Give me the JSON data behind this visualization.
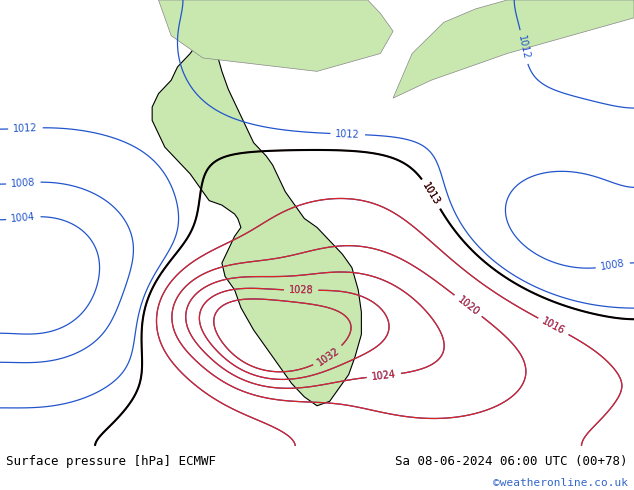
{
  "title_left": "Surface pressure [hPa] ECMWF",
  "title_right": "Sa 08-06-2024 06:00 UTC (00+78)",
  "watermark": "©weatheronline.co.uk",
  "bg_color": "#d0d8e0",
  "land_color": "#c8e8b0",
  "figsize": [
    6.34,
    4.9
  ],
  "dpi": 100,
  "bottom_bar_color": "#f0f0f0",
  "text_color": "#000000",
  "watermark_color": "#3366cc",
  "contour_levels_black": [
    1013
  ],
  "contour_levels_blue": [
    1004,
    1008,
    1012,
    1016,
    1020,
    1024,
    1028,
    1032
  ],
  "contour_levels_red": [
    1013,
    1016,
    1020,
    1024,
    1028,
    1032
  ],
  "pressure_label_fontsize": 7,
  "footer_fontsize": 9,
  "watermark_fontsize": 8
}
